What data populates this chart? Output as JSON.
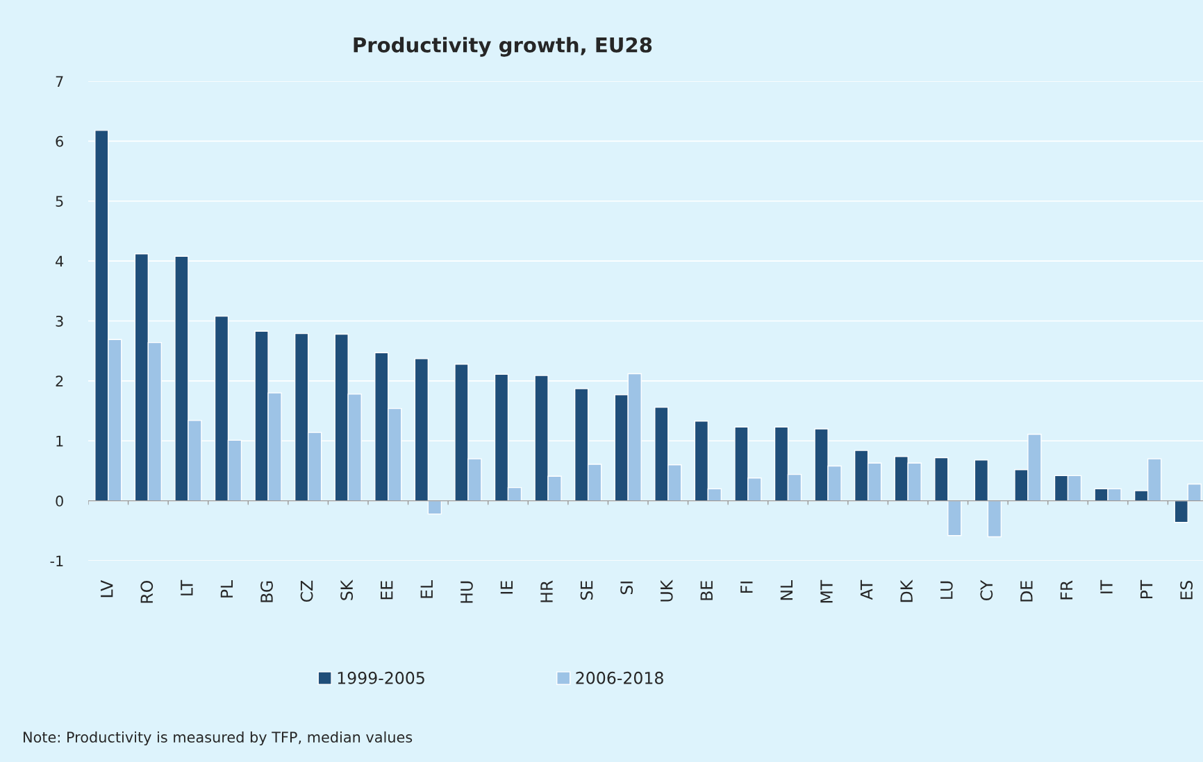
{
  "chart_data": {
    "type": "bar",
    "title": "Productivity growth, EU28",
    "categories": [
      "LV",
      "RO",
      "LT",
      "PL",
      "BG",
      "CZ",
      "SK",
      "EE",
      "EL",
      "HU",
      "IE",
      "HR",
      "SE",
      "SI",
      "UK",
      "BE",
      "FI",
      "NL",
      "MT",
      "AT",
      "DK",
      "LU",
      "CY",
      "DE",
      "FR",
      "IT",
      "PT",
      "ES"
    ],
    "series": [
      {
        "name": "1999-2005",
        "color": "#1f4e79",
        "values": [
          6.18,
          4.12,
          4.08,
          3.08,
          2.83,
          2.79,
          2.78,
          2.47,
          2.37,
          2.28,
          2.11,
          2.09,
          1.87,
          1.77,
          1.56,
          1.33,
          1.23,
          1.23,
          1.2,
          0.84,
          0.74,
          0.72,
          0.68,
          0.52,
          0.42,
          0.2,
          0.17,
          -0.36
        ]
      },
      {
        "name": "2006-2018",
        "color": "#9dc3e6",
        "values": [
          2.69,
          2.64,
          1.34,
          1.01,
          1.8,
          1.14,
          1.78,
          1.54,
          -0.22,
          0.7,
          0.22,
          0.41,
          0.61,
          2.12,
          0.6,
          0.2,
          0.38,
          0.44,
          0.58,
          0.63,
          0.63,
          -0.58,
          -0.6,
          1.11,
          0.42,
          0.2,
          0.7,
          0.28
        ]
      }
    ],
    "ylim": [
      -1,
      7
    ],
    "yticks": [
      -1,
      0,
      1,
      2,
      3,
      4,
      5,
      6,
      7
    ],
    "grid": "y",
    "legend": "bottom",
    "annotations": [
      "Note: Productivity is measured by TFP, median values"
    ]
  }
}
